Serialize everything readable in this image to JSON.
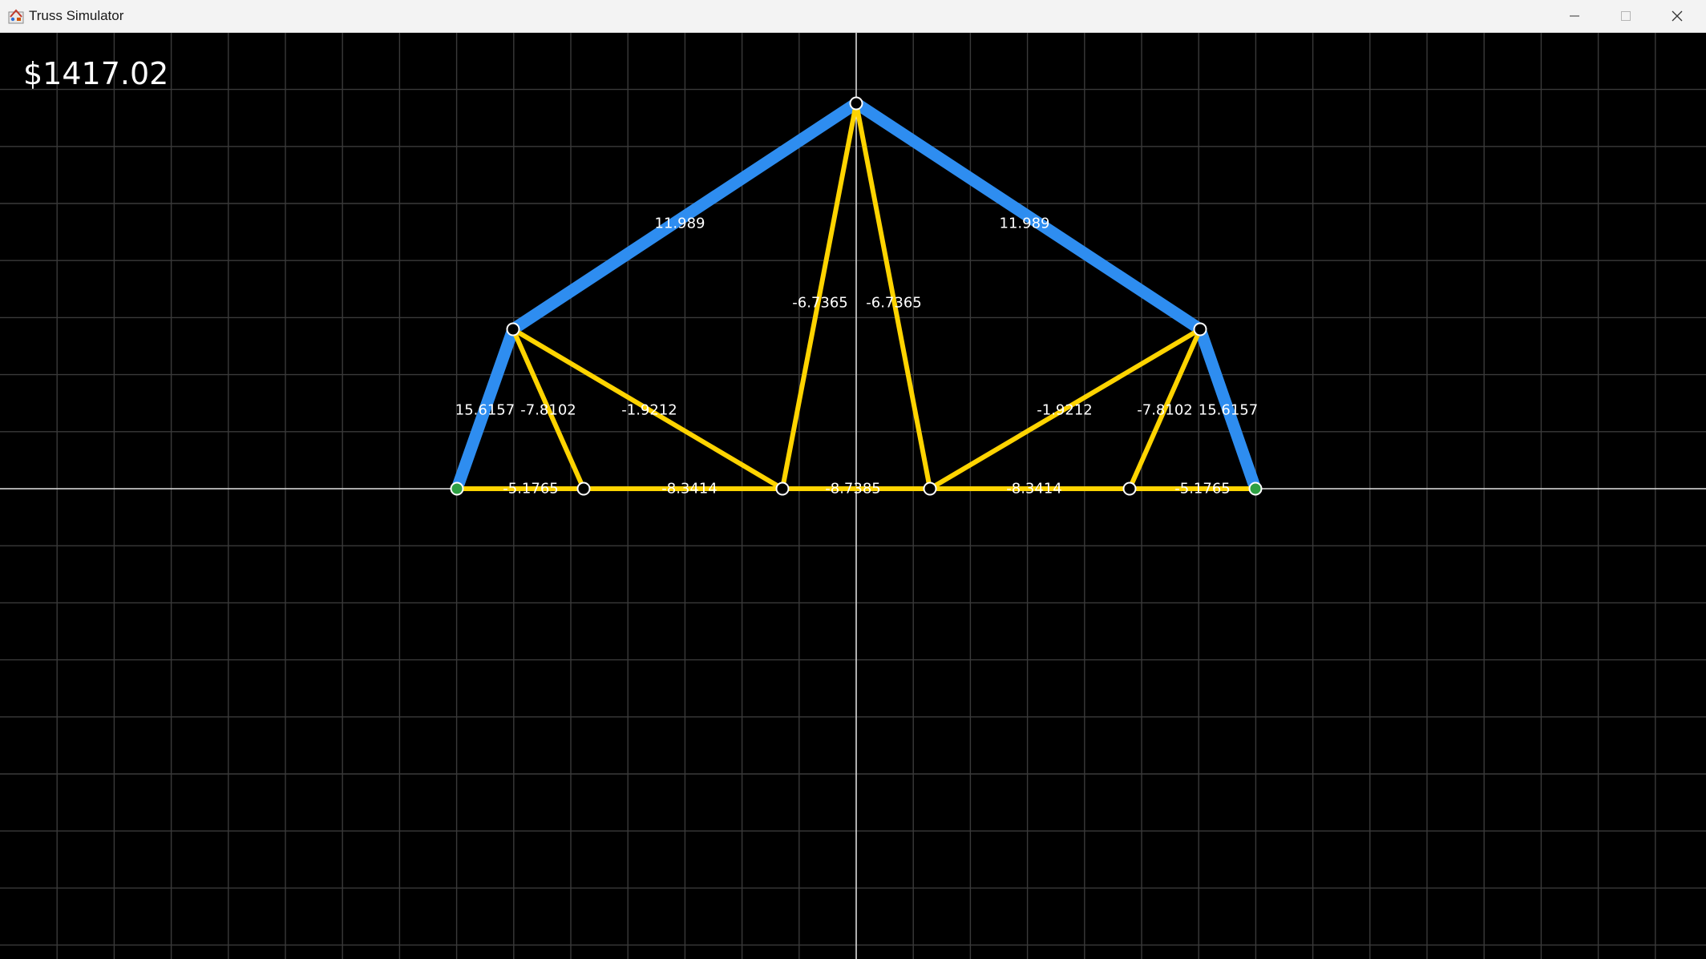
{
  "window": {
    "title": "Truss Simulator",
    "controls": [
      "minimize",
      "maximize",
      "close"
    ]
  },
  "cost": "$1417.02",
  "colors": {
    "tension": "#2e8df0",
    "compression": "#ffd400",
    "background": "#000000",
    "grid": "#3a3a3a",
    "axis": "#ffffff",
    "fixed_node": "#2ea043",
    "free_node": "#000000"
  },
  "members": [
    {
      "id": "top-left",
      "force": "11.989",
      "type": "tension"
    },
    {
      "id": "top-right",
      "force": "11.989",
      "type": "tension"
    },
    {
      "id": "apex-web-left",
      "force": "-6.7365",
      "type": "compression"
    },
    {
      "id": "apex-web-right",
      "force": "-6.7365",
      "type": "compression"
    },
    {
      "id": "left-end",
      "force": "15.6157",
      "type": "tension"
    },
    {
      "id": "right-end",
      "force": "15.6157",
      "type": "tension"
    },
    {
      "id": "left-short-web",
      "force": "-7.8102",
      "type": "compression"
    },
    {
      "id": "right-short-web",
      "force": "-7.8102",
      "type": "compression"
    },
    {
      "id": "left-long-web",
      "force": "-1.9212",
      "type": "compression"
    },
    {
      "id": "right-long-web",
      "force": "-1.9212",
      "type": "compression"
    },
    {
      "id": "bottom-1",
      "force": "-5.1765",
      "type": "compression"
    },
    {
      "id": "bottom-2",
      "force": "-8.3414",
      "type": "compression"
    },
    {
      "id": "bottom-3",
      "force": "-8.7385",
      "type": "compression"
    },
    {
      "id": "bottom-4",
      "force": "-8.3414",
      "type": "compression"
    },
    {
      "id": "bottom-5",
      "force": "-5.1765",
      "type": "compression"
    }
  ],
  "nodes": [
    {
      "id": "support-left",
      "support": true
    },
    {
      "id": "b1",
      "support": false
    },
    {
      "id": "b2",
      "support": false
    },
    {
      "id": "b3",
      "support": false
    },
    {
      "id": "b4",
      "support": false
    },
    {
      "id": "support-right",
      "support": true
    },
    {
      "id": "upper-left",
      "support": false
    },
    {
      "id": "apex",
      "support": false
    },
    {
      "id": "upper-right",
      "support": false
    }
  ]
}
